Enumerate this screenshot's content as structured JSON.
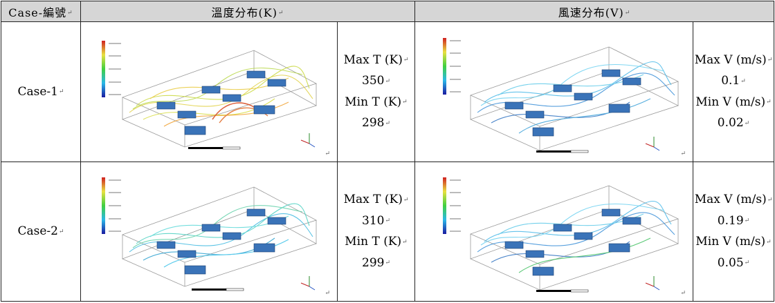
{
  "table": {
    "header": {
      "case": "Case-編號",
      "temperature": "溫度分布(K)",
      "velocity": "風速分布(V)"
    },
    "rows": [
      {
        "case": "Case-1",
        "temp_stats": [
          "Max T (K)",
          "350",
          "Min T (K)",
          "298"
        ],
        "vel_stats": [
          "Max V (m/s)",
          "0.1",
          "Min V (m/s)",
          "0.02"
        ]
      },
      {
        "case": "Case-2",
        "temp_stats": [
          "Max T (K)",
          "310",
          "Min T (K)",
          "299"
        ],
        "vel_stats": [
          "Max V (m/s)",
          "0.19",
          "Min V (m/s)",
          "0.05"
        ]
      }
    ]
  },
  "return_mark": "↵",
  "colors": {
    "header_bg": "#d6d6d6",
    "server_block": "#3a73b8",
    "case1_streamlines": [
      "#e8d34a",
      "#c8d83a",
      "#f0a030",
      "#d84a20"
    ],
    "case2_streamlines": [
      "#3cb8e0",
      "#48d0c0",
      "#2aa0d0"
    ],
    "velocity_streamlines": [
      "#3a8fd8",
      "#48b8e8",
      "#2a6fc0"
    ]
  }
}
